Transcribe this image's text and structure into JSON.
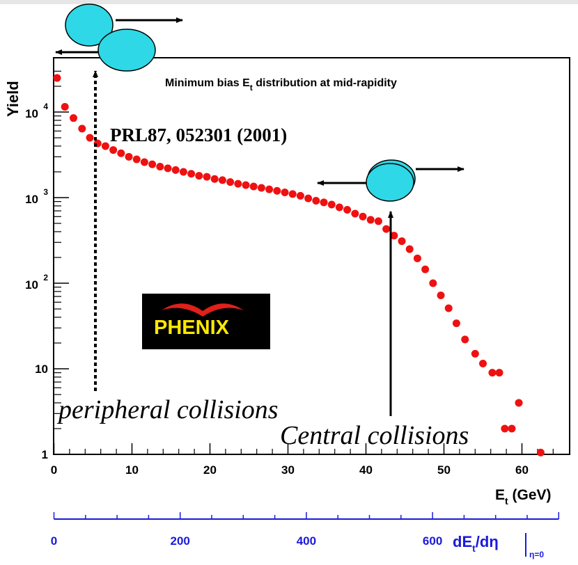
{
  "chart_data": {
    "type": "scatter",
    "title": "Minimum bias E",
    "title_sub": "t",
    "title_tail": " distribution at mid-rapidity",
    "ylabel": "Yield",
    "xlabel_main": "E",
    "xlabel_sub": "t",
    "xlabel_unit": " (GeV)",
    "x2label_main": "dE",
    "x2label_sub": "t",
    "x2label_tail": "/dη",
    "x2label_cond": "η=0",
    "yscale": "log",
    "xlim": [
      0,
      66
    ],
    "ylim": [
      1,
      30000
    ],
    "x2lim": [
      0,
      800
    ],
    "marker_color": "#ee1111",
    "x2_axis_color": "#1a1adc",
    "xticks": [
      {
        "v": 0,
        "label": "0"
      },
      {
        "v": 10,
        "label": "10"
      },
      {
        "v": 20,
        "label": "20"
      },
      {
        "v": 30,
        "label": "30"
      },
      {
        "v": 40,
        "label": "40"
      },
      {
        "v": 50,
        "label": "50"
      },
      {
        "v": 60,
        "label": "60"
      }
    ],
    "x2ticks": [
      {
        "v": 0,
        "label": "0"
      },
      {
        "v": 200,
        "label": "200"
      },
      {
        "v": 400,
        "label": "400"
      },
      {
        "v": 600,
        "label": "600"
      }
    ],
    "yticks": [
      {
        "v": 1,
        "label": "1"
      },
      {
        "v": 10,
        "label": "10"
      },
      {
        "v": 100,
        "base": "10",
        "exp": "2"
      },
      {
        "v": 1000,
        "base": "10",
        "exp": "3"
      },
      {
        "v": 10000,
        "base": "10",
        "exp": "4"
      }
    ],
    "points": [
      [
        0.4,
        25000
      ],
      [
        1.4,
        11500
      ],
      [
        2.5,
        8500
      ],
      [
        3.6,
        6400
      ],
      [
        4.6,
        5000
      ],
      [
        5.6,
        4300
      ],
      [
        6.6,
        4000
      ],
      [
        7.6,
        3600
      ],
      [
        8.6,
        3300
      ],
      [
        9.6,
        3000
      ],
      [
        10.6,
        2800
      ],
      [
        11.6,
        2600
      ],
      [
        12.6,
        2450
      ],
      [
        13.6,
        2300
      ],
      [
        14.6,
        2200
      ],
      [
        15.6,
        2100
      ],
      [
        16.6,
        2000
      ],
      [
        17.6,
        1900
      ],
      [
        18.6,
        1800
      ],
      [
        19.6,
        1750
      ],
      [
        20.6,
        1650
      ],
      [
        21.6,
        1600
      ],
      [
        22.6,
        1520
      ],
      [
        23.6,
        1450
      ],
      [
        24.6,
        1400
      ],
      [
        25.6,
        1350
      ],
      [
        26.6,
        1300
      ],
      [
        27.6,
        1250
      ],
      [
        28.6,
        1200
      ],
      [
        29.6,
        1150
      ],
      [
        30.6,
        1100
      ],
      [
        31.6,
        1050
      ],
      [
        32.6,
        980
      ],
      [
        33.6,
        920
      ],
      [
        34.6,
        880
      ],
      [
        35.6,
        830
      ],
      [
        36.6,
        770
      ],
      [
        37.6,
        720
      ],
      [
        38.6,
        650
      ],
      [
        39.6,
        600
      ],
      [
        40.6,
        550
      ],
      [
        41.6,
        530
      ],
      [
        42.6,
        430
      ],
      [
        43.6,
        360
      ],
      [
        44.6,
        310
      ],
      [
        45.6,
        250
      ],
      [
        46.6,
        195
      ],
      [
        47.6,
        145
      ],
      [
        48.6,
        100
      ],
      [
        49.6,
        72
      ],
      [
        50.6,
        51
      ],
      [
        51.6,
        34
      ],
      [
        52.7,
        22
      ],
      [
        54.0,
        15
      ],
      [
        55.0,
        11.5
      ],
      [
        56.2,
        9
      ],
      [
        57.1,
        9
      ],
      [
        57.8,
        2
      ],
      [
        58.7,
        2
      ],
      [
        59.6,
        4
      ],
      [
        62.4,
        1.05
      ]
    ]
  },
  "annotations": {
    "reference": "PRL87, 052301 (2001)",
    "peripheral": "peripheral collisions",
    "central": "Central collisions",
    "logo": "PHENIX"
  }
}
